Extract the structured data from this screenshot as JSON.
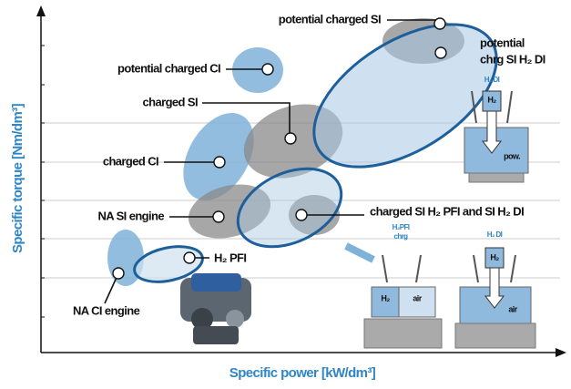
{
  "axes": {
    "x_label": "Specific power [kW/dm³]",
    "y_label": "Specific torque [Nm/dm³]"
  },
  "regions": {
    "potential_charged_si": "potential charged SI",
    "potential_chrg_si_h2_di": [
      "potential",
      "chrg SI H₂ DI"
    ],
    "potential_charged_ci": "potential charged CI",
    "charged_si": "charged SI",
    "charged_ci": "charged  CI",
    "na_si_engine": "NA SI engine",
    "charged_si_h2_pfi_and_di": "charged SI H₂ PFI and  SI H₂ DI",
    "h2_pfi": "H₂ PFI",
    "na_ci_engine": "NA CI engine"
  },
  "engine_diagrams": {
    "top": {
      "title": "H₂ DI",
      "injector": "H₂",
      "stroke": "pow."
    },
    "left": {
      "title": [
        "H₂PFI",
        "chrg"
      ],
      "mixture": "H₂",
      "air": "air"
    },
    "right": {
      "title": "H₂ DI",
      "injector": "H₂",
      "air": "air"
    }
  }
}
